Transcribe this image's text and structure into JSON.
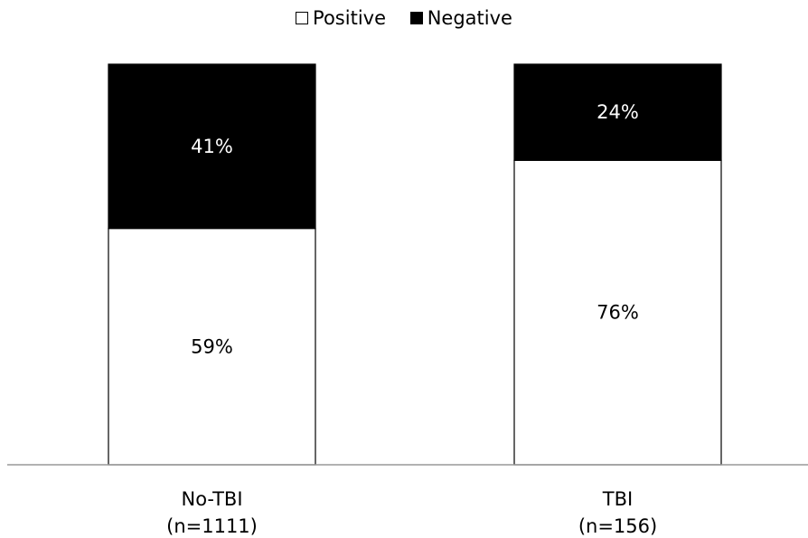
{
  "chart_data": {
    "type": "bar",
    "stacked": true,
    "percent_stacked": true,
    "categories": [
      "No-TBI\n(n=1111)",
      "TBI\n(n=156)"
    ],
    "series": [
      {
        "name": "Positive",
        "values": [
          59,
          76
        ],
        "labels": [
          "59%",
          "76%"
        ],
        "color": "#ffffff"
      },
      {
        "name": "Negative",
        "values": [
          41,
          24
        ],
        "labels": [
          "41%",
          "24%"
        ],
        "color": "#000000"
      }
    ],
    "ylim": [
      0,
      100
    ],
    "grid": false,
    "legend_position": "top-center",
    "colors": {
      "positive": "#ffffff",
      "negative": "#000000",
      "axis": "#999999",
      "outline": "#000000"
    }
  }
}
